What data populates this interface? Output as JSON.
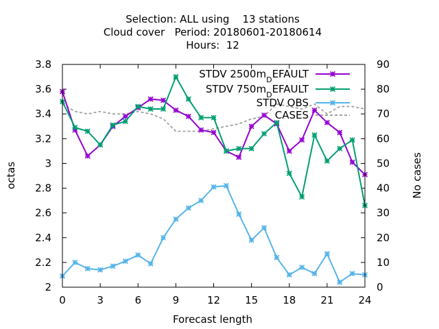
{
  "chart_data": {
    "type": "line",
    "title_lines": [
      "Selection: ALL using    13 stations",
      "Cloud cover   Period: 20180601-20180614",
      "Hours:  12"
    ],
    "xlabel": "Forecast length",
    "ylabel": "octas",
    "y2label": "No cases",
    "xlim": [
      0,
      24
    ],
    "ylim": [
      2,
      3.8
    ],
    "y2lim": [
      0,
      90
    ],
    "x_ticks": [
      "0",
      "3",
      "6",
      "9",
      "12",
      "15",
      "18",
      "21",
      "24"
    ],
    "y_ticks": [
      "2",
      "2.2",
      "2.4",
      "2.6",
      "2.8",
      "3",
      "3.2",
      "3.4",
      "3.6",
      "3.8"
    ],
    "y2_ticks": [
      "0",
      "10",
      "20",
      "30",
      "40",
      "50",
      "60",
      "70",
      "80",
      "90"
    ],
    "legend_position": "top-right",
    "x": [
      0,
      1,
      2,
      3,
      4,
      5,
      6,
      7,
      8,
      9,
      10,
      11,
      12,
      13,
      14,
      15,
      16,
      17,
      18,
      19,
      20,
      21,
      22,
      23,
      24
    ],
    "series": [
      {
        "name": "STDV 2500m_DEFAULT",
        "legend_parts": [
          "STDV 2500m",
          "D",
          "EFAULT"
        ],
        "color": "#9400d3",
        "axis": "y1",
        "marker": "x",
        "values": [
          3.58,
          3.27,
          3.06,
          3.15,
          3.3,
          3.38,
          3.45,
          3.52,
          3.51,
          3.43,
          3.38,
          3.27,
          3.25,
          3.1,
          3.05,
          3.3,
          3.39,
          3.32,
          3.1,
          3.19,
          3.43,
          3.33,
          3.25,
          3.01,
          2.91
        ]
      },
      {
        "name": "STDV 750m_DEFAULT",
        "legend_parts": [
          "STDV 750m",
          "D",
          "EFAULT"
        ],
        "color": "#009e73",
        "axis": "y1",
        "marker": "x",
        "values": [
          3.5,
          3.29,
          3.26,
          3.15,
          3.31,
          3.34,
          3.46,
          3.44,
          3.44,
          3.7,
          3.52,
          3.37,
          3.37,
          3.1,
          3.12,
          3.12,
          3.24,
          3.33,
          2.92,
          2.73,
          3.23,
          3.02,
          3.12,
          3.19,
          2.66
        ]
      },
      {
        "name": "STDV OBS",
        "legend_parts": [
          "STDV OBS"
        ],
        "color": "#56b4e9",
        "axis": "y1",
        "marker": "x",
        "values": [
          2.09,
          2.2,
          2.15,
          2.14,
          2.17,
          2.21,
          2.26,
          2.19,
          2.4,
          2.55,
          2.64,
          2.7,
          2.81,
          2.82,
          2.59,
          2.38,
          2.48,
          2.24,
          2.1,
          2.16,
          2.11,
          2.27,
          2.04,
          2.11,
          2.1
        ]
      },
      {
        "name": "CASES",
        "legend_parts": [
          "CASES"
        ],
        "color": "#a0a0a0",
        "axis": "y2",
        "dashed": true,
        "values": [
          74,
          71,
          70,
          71,
          70,
          70,
          71,
          70,
          68,
          63,
          63,
          63,
          64,
          65,
          66,
          68,
          69,
          74,
          73,
          72,
          74,
          70,
          73,
          73,
          72
        ]
      }
    ]
  }
}
